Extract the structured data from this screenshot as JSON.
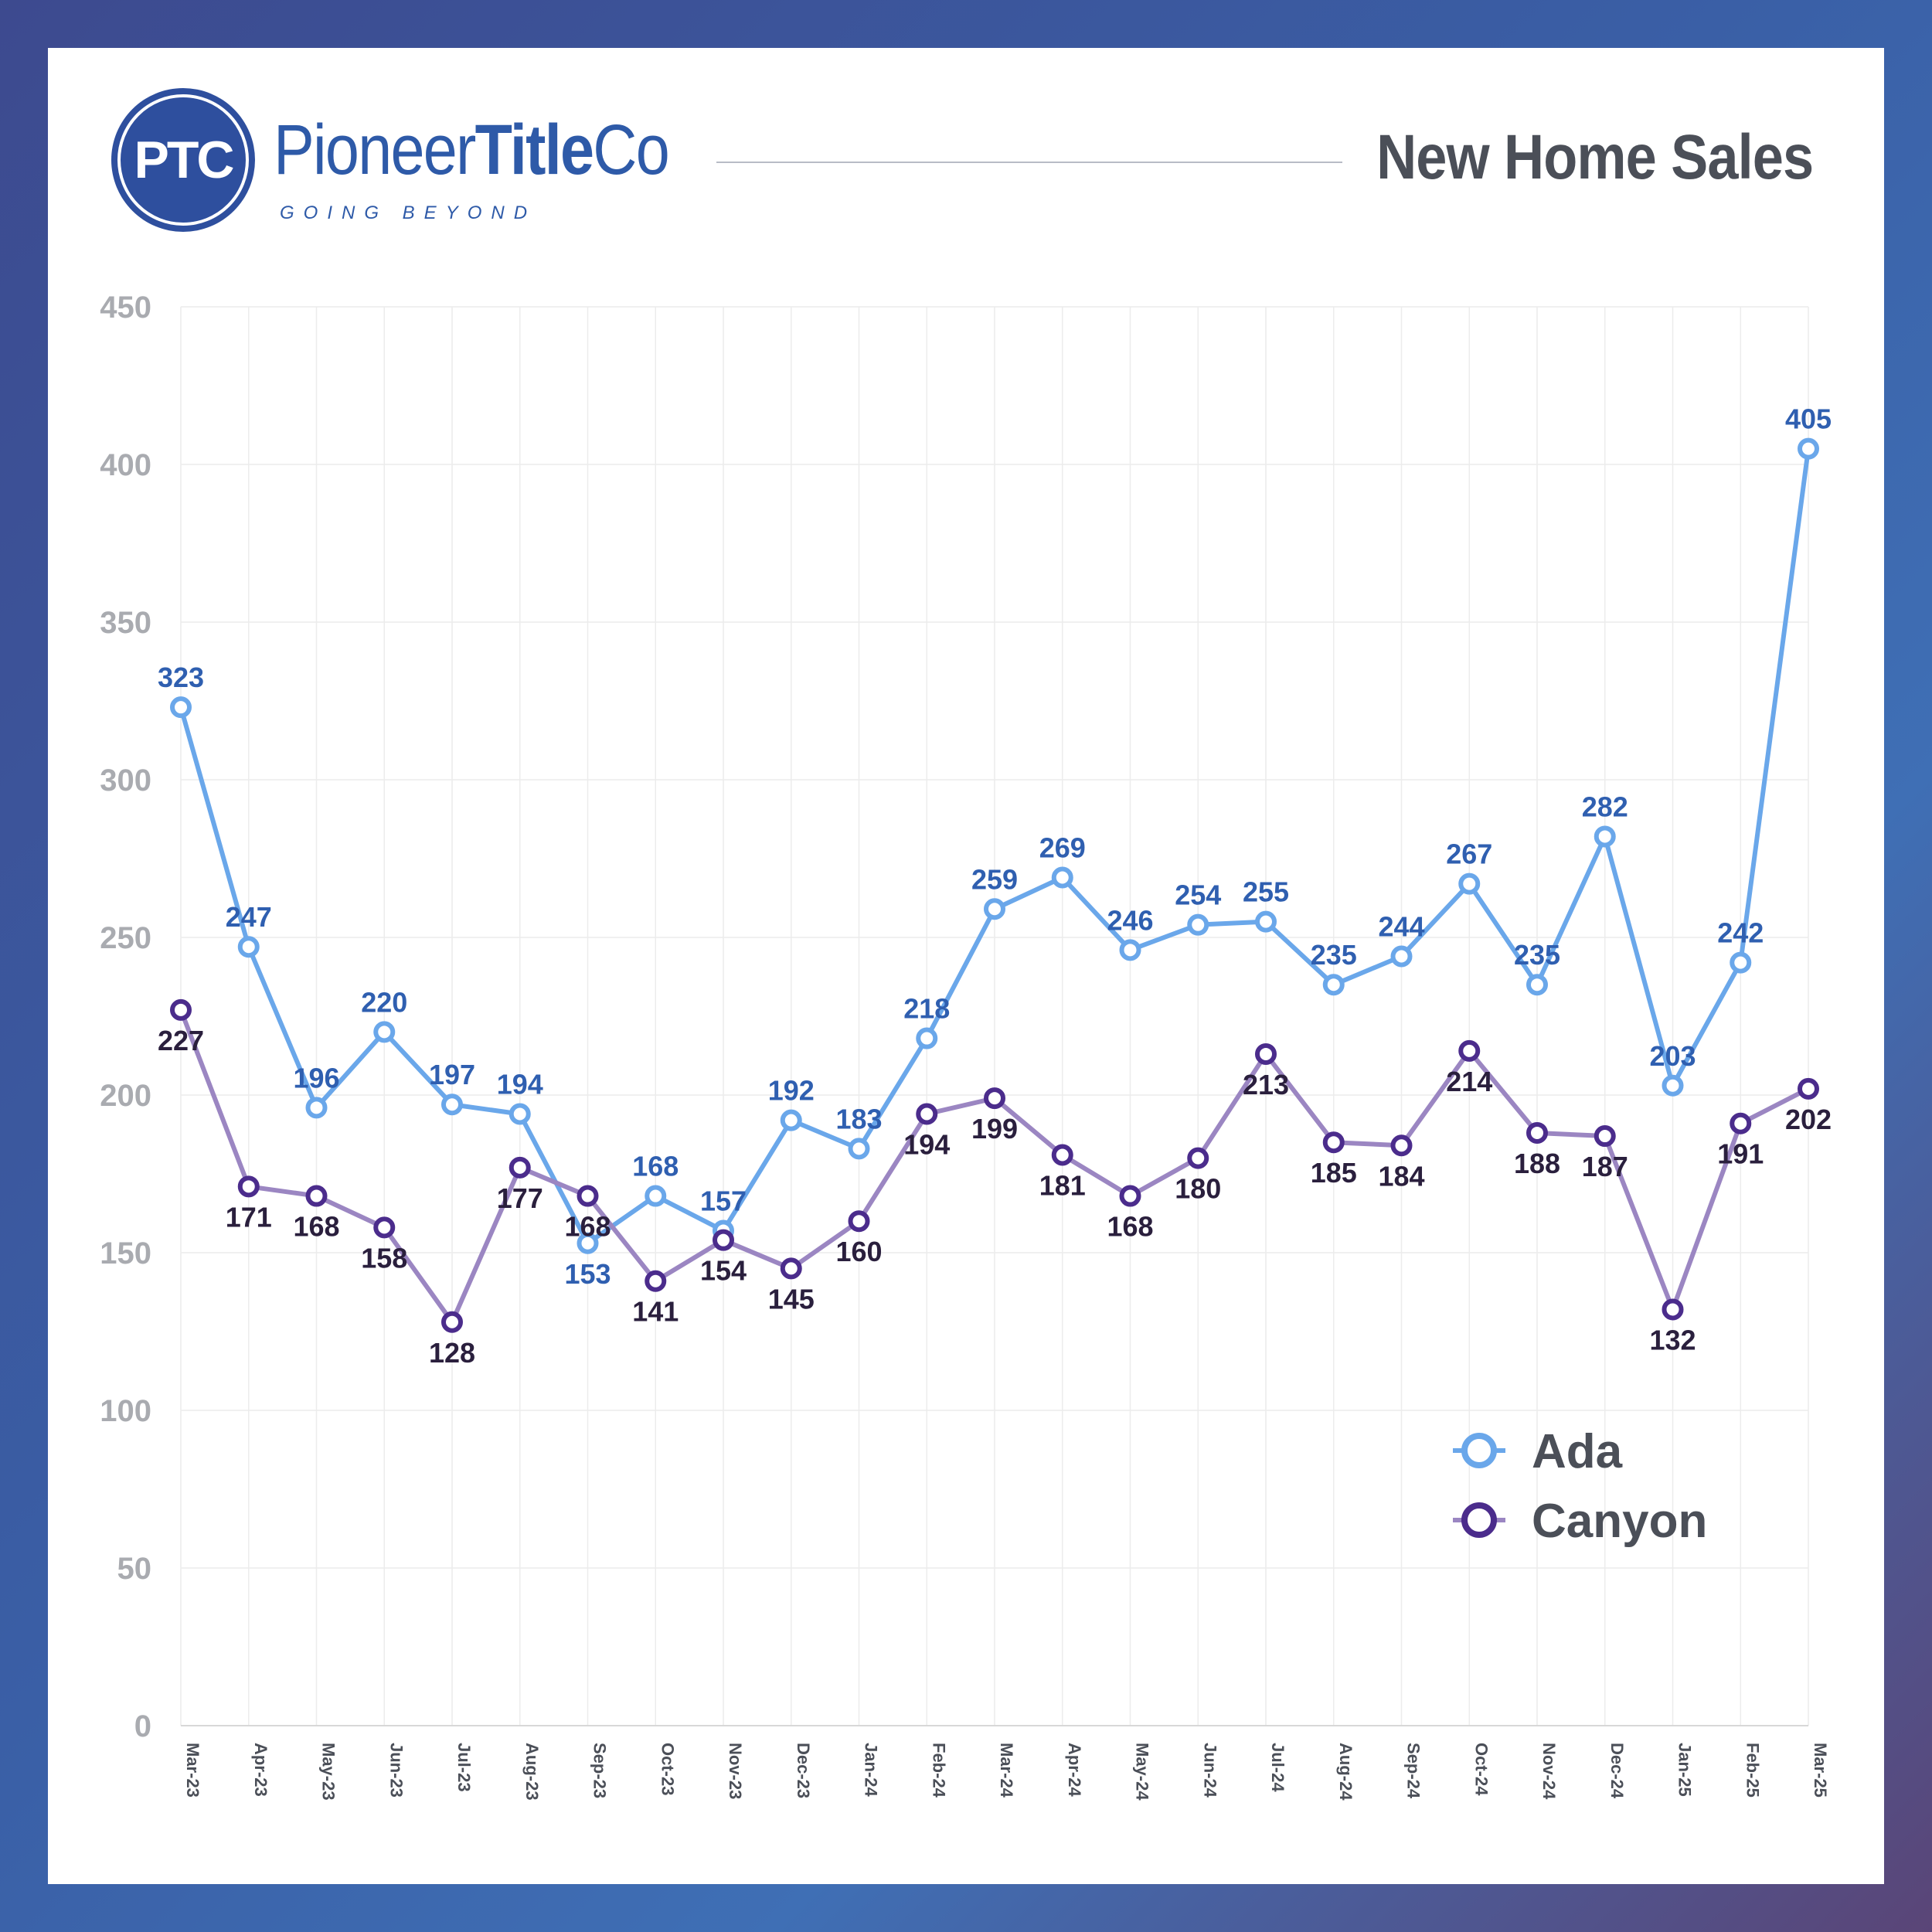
{
  "header": {
    "logo_monogram": "PTC",
    "brand_regular": "Pioneer",
    "brand_bold": "Title",
    "brand_suffix": "Co",
    "tagline": "GOING BEYOND",
    "title": "New Home Sales"
  },
  "colors": {
    "ada_line": "#6aa7ea",
    "ada_label": "#2f5fb0",
    "canyon_line": "#9b86c2",
    "canyon_marker": "#4b2c8c",
    "canyon_label": "#2a1f3d",
    "grid": "#ececec",
    "axis_tick": "#a9abb0"
  },
  "chart_data": {
    "type": "line",
    "title": "New Home Sales",
    "xlabel": "",
    "ylabel": "",
    "ylim": [
      0,
      450
    ],
    "yticks": [
      0,
      50,
      100,
      150,
      200,
      250,
      300,
      350,
      400,
      450
    ],
    "grid": true,
    "legend_position": "bottom-right",
    "categories": [
      "Mar-23",
      "Apr-23",
      "May-23",
      "Jun-23",
      "Jul-23",
      "Aug-23",
      "Sep-23",
      "Oct-23",
      "Nov-23",
      "Dec-23",
      "Jan-24",
      "Feb-24",
      "Mar-24",
      "Apr-24",
      "May-24",
      "Jun-24",
      "Jul-24",
      "Aug-24",
      "Sep-24",
      "Oct-24",
      "Nov-24",
      "Dec-24",
      "Jan-25",
      "Feb-25",
      "Mar-25"
    ],
    "series": [
      {
        "name": "Ada",
        "values": [
          323,
          247,
          196,
          220,
          197,
          194,
          153,
          168,
          157,
          192,
          183,
          218,
          259,
          269,
          246,
          254,
          255,
          235,
          244,
          267,
          235,
          282,
          203,
          242,
          405
        ]
      },
      {
        "name": "Canyon",
        "values": [
          227,
          171,
          168,
          158,
          128,
          177,
          168,
          141,
          154,
          145,
          160,
          194,
          199,
          181,
          168,
          180,
          213,
          185,
          184,
          214,
          188,
          187,
          132,
          191,
          202
        ]
      }
    ]
  }
}
